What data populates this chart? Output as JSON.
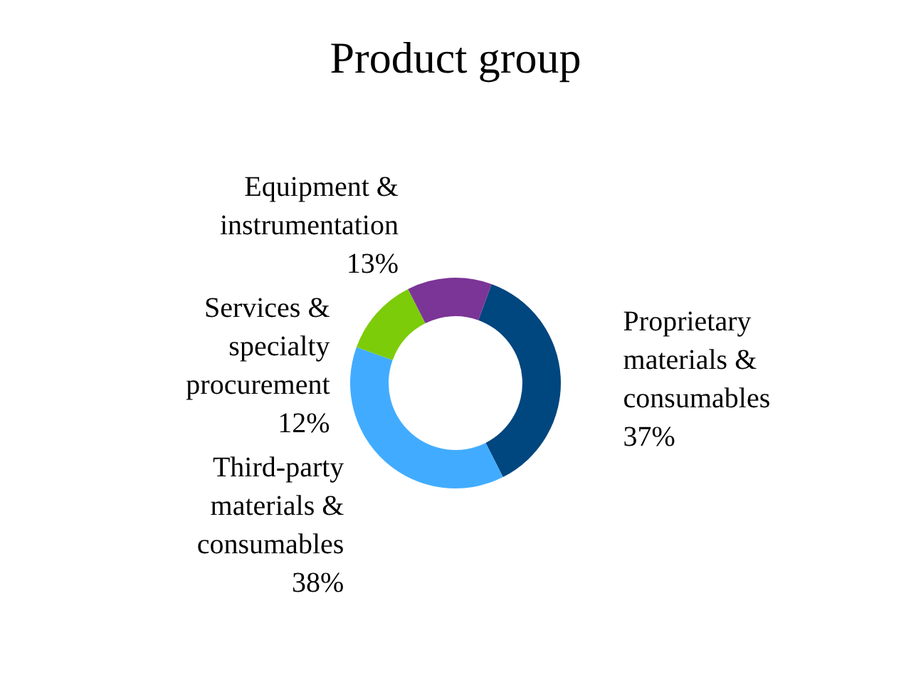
{
  "chart_data": {
    "type": "donut",
    "title": "Product group",
    "categories": [
      "Proprietary materials & consumables",
      "Third-party materials & consumables",
      "Services & specialty procurement",
      "Equipment & instrumentation"
    ],
    "values": [
      37,
      38,
      12,
      13
    ],
    "value_labels": [
      "37%",
      "38%",
      "12%",
      "13%"
    ],
    "colors": [
      "#00467f",
      "#41acff",
      "#7ccc0a",
      "#7b3596"
    ]
  }
}
